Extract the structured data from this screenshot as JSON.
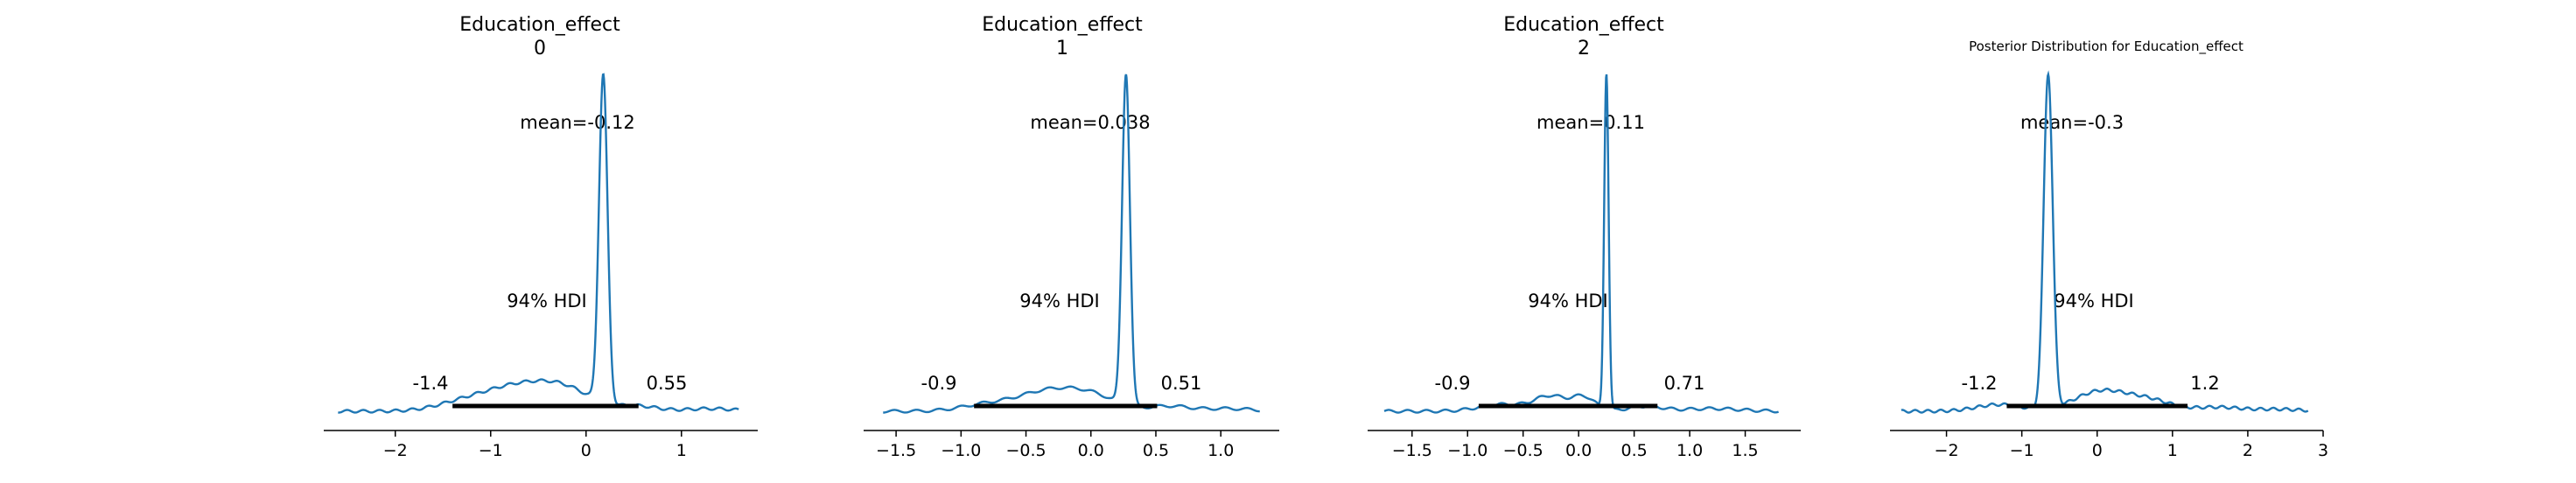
{
  "colors": {
    "curve": "#1f77b4",
    "hdi_bar": "#000000",
    "axis": "#000000",
    "background": "#ffffff"
  },
  "chart_data": [
    {
      "type": "line",
      "title_line1": "Education_effect",
      "title_line2": "0",
      "mean_label": "mean=-0.12",
      "hdi_label": "94% HDI",
      "hdi_low": -1.4,
      "hdi_high": 0.55,
      "hdi_low_label": "-1.4",
      "hdi_high_label": "0.55",
      "peak": 0.18,
      "peak_sd": 0.045,
      "xlim": [
        -2.75,
        1.8
      ],
      "ticks": [
        -2,
        -1,
        0,
        1
      ],
      "tick_labels": [
        "−2",
        "−1",
        "0",
        "1"
      ],
      "curve_range": [
        -2.6,
        1.6
      ],
      "bumps": [
        [
          -1.25,
          0.3,
          0.03
        ],
        [
          -0.75,
          0.3,
          0.06
        ],
        [
          -0.25,
          0.3,
          0.07
        ],
        [
          0.55,
          0.2,
          0.015
        ],
        [
          1.3,
          0.25,
          0.008
        ]
      ]
    },
    {
      "type": "line",
      "title_line1": "Education_effect",
      "title_line2": "1",
      "mean_label": "mean=0.038",
      "hdi_label": "94% HDI",
      "hdi_low": -0.9,
      "hdi_high": 0.51,
      "hdi_low_label": "-0.9",
      "hdi_high_label": "0.51",
      "peak": 0.27,
      "peak_sd": 0.03,
      "xlim": [
        -1.75,
        1.45
      ],
      "ticks": [
        -1.5,
        -1.0,
        -0.5,
        0.0,
        0.5,
        1.0
      ],
      "tick_labels": [
        "−1.5",
        "−1.0",
        "−0.5",
        "0.0",
        "0.5",
        "1.0"
      ],
      "curve_range": [
        -1.6,
        1.3
      ],
      "bumps": [
        [
          -0.8,
          0.2,
          0.02
        ],
        [
          -0.35,
          0.22,
          0.055
        ],
        [
          0.0,
          0.2,
          0.045
        ],
        [
          0.6,
          0.15,
          0.015
        ],
        [
          1.05,
          0.2,
          0.008
        ]
      ]
    },
    {
      "type": "line",
      "title_line1": "Education_effect",
      "title_line2": "2",
      "mean_label": "mean=0.11",
      "hdi_label": "94% HDI",
      "hdi_low": -0.9,
      "hdi_high": 0.71,
      "hdi_low_label": "-0.9",
      "hdi_high_label": "0.71",
      "peak": 0.25,
      "peak_sd": 0.02,
      "xlim": [
        -1.9,
        2.0
      ],
      "ticks": [
        -1.5,
        -1.0,
        -0.5,
        0.0,
        0.5,
        1.0,
        1.5
      ],
      "tick_labels": [
        "−1.5",
        "−1.0",
        "−0.5",
        "0.0",
        "0.5",
        "1.0",
        "1.5"
      ],
      "curve_range": [
        -1.75,
        1.8
      ],
      "bumps": [
        [
          -0.7,
          0.2,
          0.02
        ],
        [
          -0.25,
          0.15,
          0.045
        ],
        [
          0.05,
          0.1,
          0.04
        ],
        [
          0.6,
          0.15,
          0.015
        ],
        [
          1.2,
          0.25,
          0.008
        ]
      ]
    },
    {
      "type": "line",
      "title": "Posterior Distribution for Education_effect",
      "mean_label": "mean=-0.3",
      "hdi_label": "94% HDI",
      "hdi_low": -1.2,
      "hdi_high": 1.2,
      "hdi_low_label": "-1.2",
      "hdi_high_label": "1.2",
      "peak": -0.65,
      "peak_sd": 0.06,
      "xlim": [
        -2.75,
        3.0
      ],
      "ticks": [
        -2,
        -1,
        0,
        1,
        2,
        3
      ],
      "tick_labels": [
        "−2",
        "−1",
        "0",
        "1",
        "2",
        "3"
      ],
      "curve_range": [
        -2.6,
        2.8
      ],
      "bumps": [
        [
          -1.3,
          0.3,
          0.02
        ],
        [
          0.05,
          0.35,
          0.06
        ],
        [
          0.7,
          0.3,
          0.03
        ],
        [
          1.6,
          0.3,
          0.012
        ],
        [
          2.4,
          0.3,
          0.006
        ]
      ]
    }
  ]
}
